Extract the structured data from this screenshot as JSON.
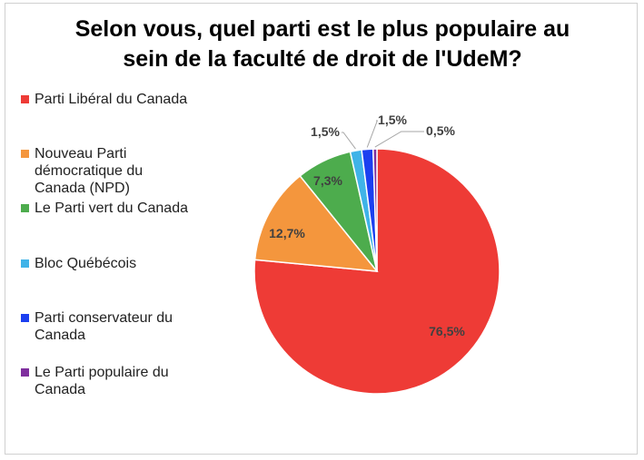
{
  "chart_data": {
    "type": "pie",
    "title": "Selon vous, quel parti est le plus populaire au sein de la faculté de droit de l'UdeM?",
    "categories": [
      "Parti Libéral du Canada",
      "Nouveau Parti démocratique du Canada (NPD)",
      "Le Parti vert du Canada",
      "Bloc Québécois",
      "Parti conservateur du Canada",
      "Le Parti populaire du Canada"
    ],
    "values": [
      76.5,
      12.7,
      7.3,
      1.5,
      1.5,
      0.5
    ],
    "data_labels": [
      "76,5%",
      "12,7%",
      "7,3%",
      "1,5%",
      "1,5%",
      "0,5%"
    ],
    "colors": [
      "#ee3b36",
      "#f4963d",
      "#4dac4d",
      "#3fb3e8",
      "#1c3ff0",
      "#7f2f9e"
    ],
    "legend_position": "left",
    "start_angle": "top, clockwise"
  }
}
